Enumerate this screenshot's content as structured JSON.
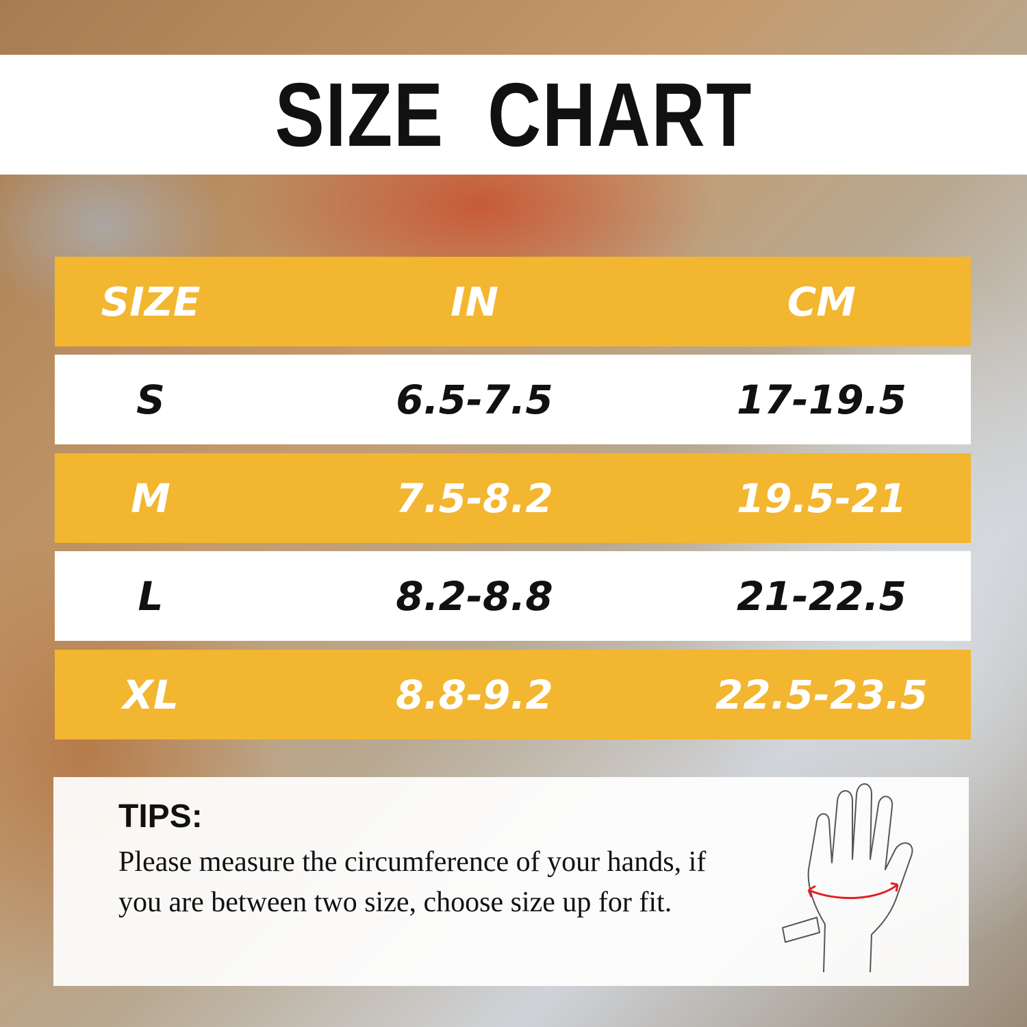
{
  "title": "SIZE  CHART",
  "table": {
    "headers": [
      "SIZE",
      "IN",
      "CM"
    ],
    "rows": [
      {
        "size": "S",
        "in": "6.5-7.5",
        "cm": "17-19.5"
      },
      {
        "size": "M",
        "in": "7.5-8.2",
        "cm": "19.5-21"
      },
      {
        "size": "L",
        "in": "8.2-8.8",
        "cm": "21-22.5"
      },
      {
        "size": "XL",
        "in": "8.8-9.2",
        "cm": "22.5-23.5"
      }
    ]
  },
  "tips": {
    "heading": "TIPS:",
    "text": "Please measure the circumference of your hands, if you are between two size, choose size up for fit."
  },
  "colors": {
    "accent": "#f2b630",
    "measure_line": "#e02020"
  },
  "icons": [
    "hand-measurement-icon"
  ]
}
